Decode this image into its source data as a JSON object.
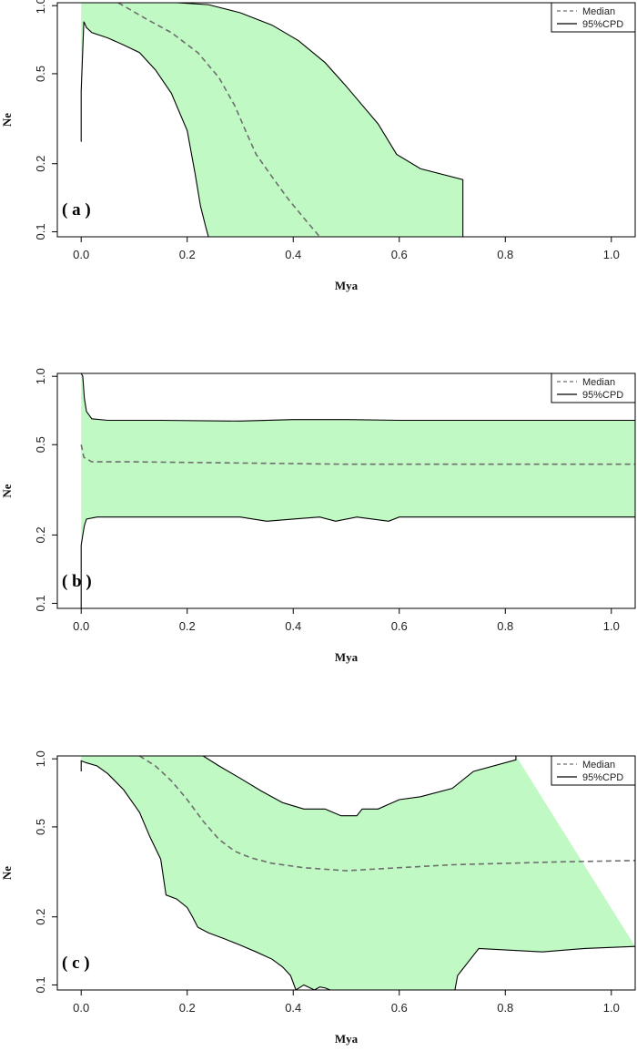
{
  "figure": {
    "panel_count": 3,
    "ci_fill": "#c0f9c3",
    "median_color": "#6e6e6e",
    "line_color": "#000000"
  },
  "chart_data": [
    {
      "type": "area",
      "panel_label": "( a )",
      "xlabel": "Mya",
      "ylabel": "Ne",
      "xlim": [
        -0.045,
        1.045
      ],
      "ylim": [
        0.095,
        1.03
      ],
      "log_y": true,
      "grid": false,
      "legend_position": "top-right",
      "xticks": [
        0.0,
        0.2,
        0.4,
        0.6,
        0.8,
        1.0
      ],
      "xtick_labels": [
        "0.0",
        "0.2",
        "0.4",
        "0.6",
        "0.8",
        "1.0"
      ],
      "yticks": [
        0.1,
        0.2,
        0.5,
        1.0
      ],
      "ytick_labels": [
        "0.1",
        "0.2",
        "0.5",
        "1.0"
      ],
      "series": [
        {
          "name": "Median",
          "style": "dashed",
          "x": [
            0.07,
            0.12,
            0.17,
            0.22,
            0.26,
            0.29,
            0.31,
            0.33,
            0.36,
            0.39,
            0.42,
            0.45
          ],
          "y": [
            1.03,
            0.88,
            0.76,
            0.62,
            0.48,
            0.36,
            0.28,
            0.22,
            0.175,
            0.14,
            0.115,
            0.095
          ]
        },
        {
          "name": "95%CPD",
          "style": "solid",
          "role": "upper",
          "x": [
            0.0,
            0.12,
            0.18,
            0.24,
            0.3,
            0.36,
            0.41,
            0.46,
            0.5,
            0.56,
            0.595,
            0.64,
            0.72,
            0.72
          ],
          "y": [
            1.03,
            1.03,
            1.03,
            1.01,
            0.93,
            0.82,
            0.7,
            0.56,
            0.44,
            0.3,
            0.22,
            0.19,
            0.17,
            0.095
          ]
        },
        {
          "role": "lower",
          "x": [
            0.0,
            0.0,
            0.005,
            0.01,
            0.02,
            0.05,
            0.08,
            0.11,
            0.14,
            0.17,
            0.2,
            0.215,
            0.225,
            0.235,
            0.24
          ],
          "y": [
            0.25,
            0.42,
            0.85,
            0.8,
            0.76,
            0.72,
            0.67,
            0.62,
            0.52,
            0.41,
            0.28,
            0.18,
            0.13,
            0.105,
            0.095
          ]
        }
      ]
    },
    {
      "type": "area",
      "panel_label": "( b )",
      "xlabel": "Mya",
      "ylabel": "Ne",
      "xlim": [
        -0.045,
        1.045
      ],
      "ylim": [
        0.095,
        1.03
      ],
      "log_y": true,
      "grid": false,
      "legend_position": "top-right",
      "xticks": [
        0.0,
        0.2,
        0.4,
        0.6,
        0.8,
        1.0
      ],
      "xtick_labels": [
        "0.0",
        "0.2",
        "0.4",
        "0.6",
        "0.8",
        "1.0"
      ],
      "yticks": [
        0.1,
        0.2,
        0.5,
        1.0
      ],
      "ytick_labels": [
        "0.1",
        "0.2",
        "0.5",
        "1.0"
      ],
      "series": [
        {
          "name": "Median",
          "style": "dashed",
          "x": [
            0.0,
            0.005,
            0.02,
            0.1,
            0.3,
            0.5,
            0.7,
            1.045
          ],
          "y": [
            0.5,
            0.44,
            0.42,
            0.42,
            0.415,
            0.41,
            0.41,
            0.41
          ]
        },
        {
          "name": "95%CPD",
          "style": "solid",
          "role": "upper",
          "x": [
            0.0,
            0.003,
            0.006,
            0.01,
            0.02,
            0.05,
            0.15,
            0.3,
            0.4,
            0.5,
            0.6,
            1.045
          ],
          "y": [
            1.03,
            1.0,
            0.8,
            0.7,
            0.65,
            0.64,
            0.64,
            0.635,
            0.645,
            0.645,
            0.64,
            0.64
          ]
        },
        {
          "role": "lower",
          "x": [
            0.0,
            0.0,
            0.003,
            0.006,
            0.01,
            0.03,
            0.1,
            0.2,
            0.3,
            0.35,
            0.4,
            0.45,
            0.48,
            0.52,
            0.58,
            0.6,
            1.045
          ],
          "y": [
            0.095,
            0.18,
            0.2,
            0.22,
            0.235,
            0.24,
            0.24,
            0.24,
            0.24,
            0.23,
            0.235,
            0.24,
            0.23,
            0.24,
            0.23,
            0.24,
            0.24
          ]
        }
      ]
    },
    {
      "type": "area",
      "panel_label": "( c )",
      "xlabel": "Mya",
      "ylabel": "Ne",
      "xlim": [
        -0.045,
        1.045
      ],
      "ylim": [
        0.095,
        1.03
      ],
      "log_y": true,
      "grid": false,
      "legend_position": "top-right",
      "xticks": [
        0.0,
        0.2,
        0.4,
        0.6,
        0.8,
        1.0
      ],
      "xtick_labels": [
        "0.0",
        "0.2",
        "0.4",
        "0.6",
        "0.8",
        "1.0"
      ],
      "yticks": [
        0.1,
        0.2,
        0.5,
        1.0
      ],
      "ytick_labels": [
        "0.1",
        "0.2",
        "0.5",
        "1.0"
      ],
      "series": [
        {
          "name": "Median",
          "style": "dashed",
          "x": [
            0.11,
            0.14,
            0.17,
            0.2,
            0.23,
            0.26,
            0.29,
            0.32,
            0.36,
            0.42,
            0.5,
            0.6,
            0.7,
            0.8,
            0.9,
            1.045
          ],
          "y": [
            1.03,
            0.93,
            0.8,
            0.66,
            0.53,
            0.44,
            0.39,
            0.365,
            0.345,
            0.33,
            0.32,
            0.33,
            0.34,
            0.345,
            0.35,
            0.355
          ]
        },
        {
          "name": "95%CPD",
          "style": "solid",
          "role": "upper",
          "x": [
            0.0,
            0.23,
            0.26,
            0.3,
            0.34,
            0.38,
            0.42,
            0.46,
            0.49,
            0.52,
            0.53,
            0.56,
            0.6,
            0.64,
            0.7,
            0.74,
            0.82,
            0.82
          ],
          "y": [
            1.03,
            1.03,
            0.93,
            0.82,
            0.72,
            0.64,
            0.6,
            0.6,
            0.56,
            0.56,
            0.6,
            0.6,
            0.66,
            0.68,
            0.74,
            0.88,
            0.99,
            1.03
          ]
        },
        {
          "role": "lower",
          "x": [
            0.0,
            0.0,
            0.01,
            0.03,
            0.05,
            0.08,
            0.11,
            0.13,
            0.15,
            0.155,
            0.16,
            0.18,
            0.2,
            0.21,
            0.22,
            0.24,
            0.27,
            0.3,
            0.33,
            0.36,
            0.38,
            0.395,
            0.405,
            0.42,
            0.44,
            0.45,
            0.46,
            0.47
          ],
          "y": [
            0.88,
            0.98,
            0.96,
            0.93,
            0.86,
            0.73,
            0.58,
            0.45,
            0.36,
            0.3,
            0.25,
            0.24,
            0.22,
            0.2,
            0.18,
            0.17,
            0.16,
            0.15,
            0.14,
            0.13,
            0.12,
            0.11,
            0.095,
            0.1,
            0.095,
            0.098,
            0.097,
            0.095
          ]
        },
        {
          "role": "lower2",
          "x": [
            0.705,
            0.71,
            0.75,
            0.87,
            0.95,
            1.045
          ],
          "y": [
            0.095,
            0.11,
            0.145,
            0.14,
            0.145,
            0.148
          ]
        }
      ]
    }
  ]
}
